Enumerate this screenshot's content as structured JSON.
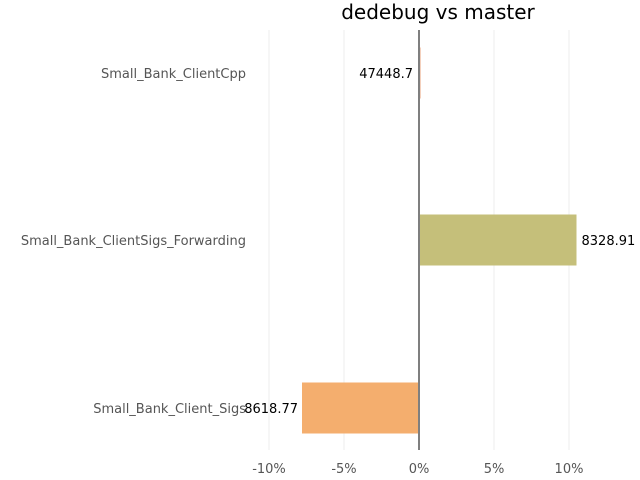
{
  "chart_data": {
    "type": "bar",
    "orientation": "horizontal",
    "title": "dedebug vs master",
    "xlabel": "",
    "ylabel": "",
    "xlim": [
      -12.5,
      14.5
    ],
    "x_ticks": [
      -10,
      -5,
      0,
      5,
      10
    ],
    "x_tick_labels": [
      "-10%",
      "-5%",
      "0%",
      "5%",
      "10%"
    ],
    "grid": true,
    "legend": "none",
    "categories": [
      "Small_Bank_ClientCpp",
      "Small_Bank_ClientSigs_Forwarding",
      "Small_Bank_Client_Sigs"
    ],
    "values": [
      0.1,
      10.5,
      -7.8
    ],
    "value_labels": [
      "47448.7",
      "8328.91",
      "8618.77"
    ],
    "colors": [
      "#e8a07a",
      "#c5bf7a",
      "#f4ae6e"
    ]
  }
}
